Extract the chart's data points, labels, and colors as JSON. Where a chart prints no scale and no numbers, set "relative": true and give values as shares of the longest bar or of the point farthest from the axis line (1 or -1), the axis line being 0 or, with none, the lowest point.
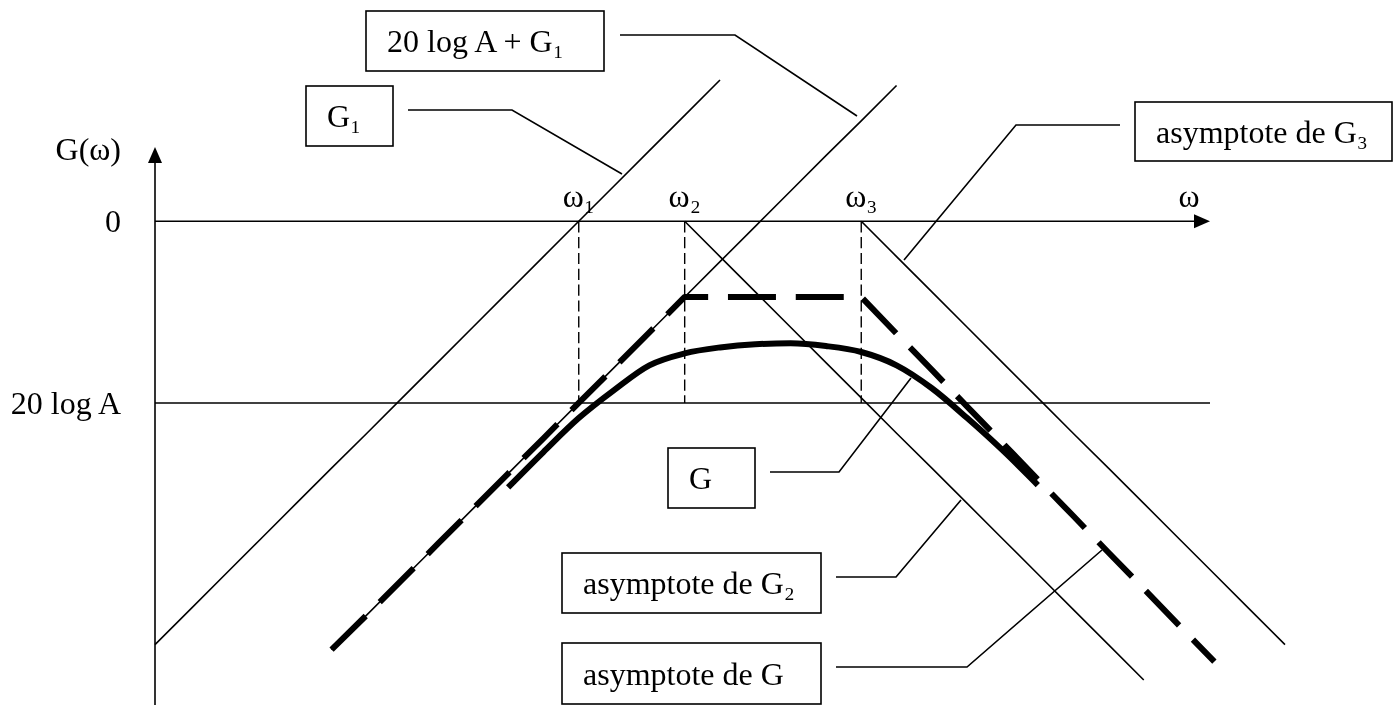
{
  "chart_data": {
    "type": "line",
    "xlabel": "ω",
    "ylabel": "G(ω)",
    "relative": true,
    "categories": [
      null,
      null,
      null,
      null,
      null,
      null,
      null,
      null,
      null,
      null,
      null,
      null,
      "ω₁",
      null,
      null,
      "ω₂",
      null,
      null,
      null,
      null,
      "ω₃",
      null,
      null,
      null,
      null,
      null,
      null,
      null,
      null,
      null,
      null,
      null,
      null
    ],
    "annotations": [
      "0"
    ],
    "ref_lines": [
      {
        "axis": "y",
        "value": -0.396,
        "label": "20 log A",
        "color": "#000000"
      },
      {
        "axis": "x",
        "value": "ω₁",
        "color": "#000000",
        "line_style": "dashed"
      },
      {
        "axis": "x",
        "value": "ω₂",
        "color": "#000000",
        "line_style": "dashed"
      },
      {
        "axis": "x",
        "value": "ω₃",
        "color": "#000000",
        "line_style": "dashed"
      }
    ],
    "series": [
      {
        "name": "G₁",
        "color": "#000000",
        "values": [
          -0.923,
          -0.846,
          -0.769,
          -0.692,
          -0.615,
          -0.538,
          -0.462,
          -0.385,
          -0.308,
          -0.231,
          -0.154,
          -0.077,
          0,
          0.077,
          0.154,
          0.231,
          0.308,
          null,
          null,
          null,
          null,
          null,
          null,
          null,
          null,
          null,
          null,
          null,
          null,
          null,
          null,
          null,
          null
        ]
      },
      {
        "name": "20 log A + G₁",
        "color": "#000000",
        "values": [
          null,
          null,
          null,
          null,
          null,
          -0.934,
          -0.858,
          -0.781,
          -0.704,
          -0.627,
          -0.55,
          -0.473,
          -0.396,
          -0.319,
          -0.242,
          -0.165,
          -0.088,
          -0.011,
          0.066,
          0.143,
          0.219,
          0.296,
          null,
          null,
          null,
          null,
          null,
          null,
          null,
          null,
          null,
          null,
          null
        ]
      },
      {
        "name": "asymptote de G₃",
        "color": "#000000",
        "values": [
          null,
          null,
          null,
          null,
          null,
          null,
          null,
          null,
          null,
          null,
          null,
          null,
          null,
          null,
          null,
          null,
          null,
          null,
          null,
          null,
          0,
          -0.077,
          -0.154,
          -0.231,
          -0.308,
          -0.385,
          -0.462,
          -0.538,
          -0.615,
          -0.692,
          -0.769,
          -0.846,
          -0.923
        ]
      },
      {
        "name": "G",
        "color": "#000000",
        "values": [
          null,
          null,
          null,
          null,
          null,
          null,
          null,
          null,
          null,
          null,
          -0.58,
          -0.503,
          -0.429,
          -0.368,
          -0.314,
          -0.288,
          -0.275,
          -0.268,
          -0.266,
          -0.272,
          -0.285,
          -0.314,
          -0.364,
          -0.429,
          -0.499,
          -0.575,
          null,
          null,
          null,
          null,
          null,
          null,
          null
        ]
      },
      {
        "name": "asymptote de G₂",
        "color": "#000000",
        "values": [
          null,
          null,
          null,
          null,
          null,
          null,
          null,
          null,
          null,
          null,
          null,
          null,
          null,
          null,
          null,
          0,
          -0.077,
          -0.154,
          -0.231,
          -0.308,
          -0.385,
          -0.462,
          -0.538,
          -0.615,
          -0.692,
          -0.769,
          -0.846,
          -0.923,
          -1,
          null,
          null,
          null,
          null
        ]
      },
      {
        "name": "asymptote de G",
        "color": "#000000",
        "line_style": "dashed",
        "values": [
          null,
          null,
          null,
          null,
          null,
          -0.934,
          -0.858,
          -0.781,
          -0.704,
          -0.627,
          -0.55,
          -0.473,
          -0.396,
          -0.319,
          -0.242,
          -0.165,
          -0.165,
          -0.165,
          -0.165,
          -0.165,
          -0.165,
          -0.245,
          -0.324,
          -0.404,
          -0.483,
          -0.563,
          -0.642,
          -0.722,
          -0.801,
          -0.881,
          -0.96,
          null,
          null
        ]
      }
    ]
  }
}
